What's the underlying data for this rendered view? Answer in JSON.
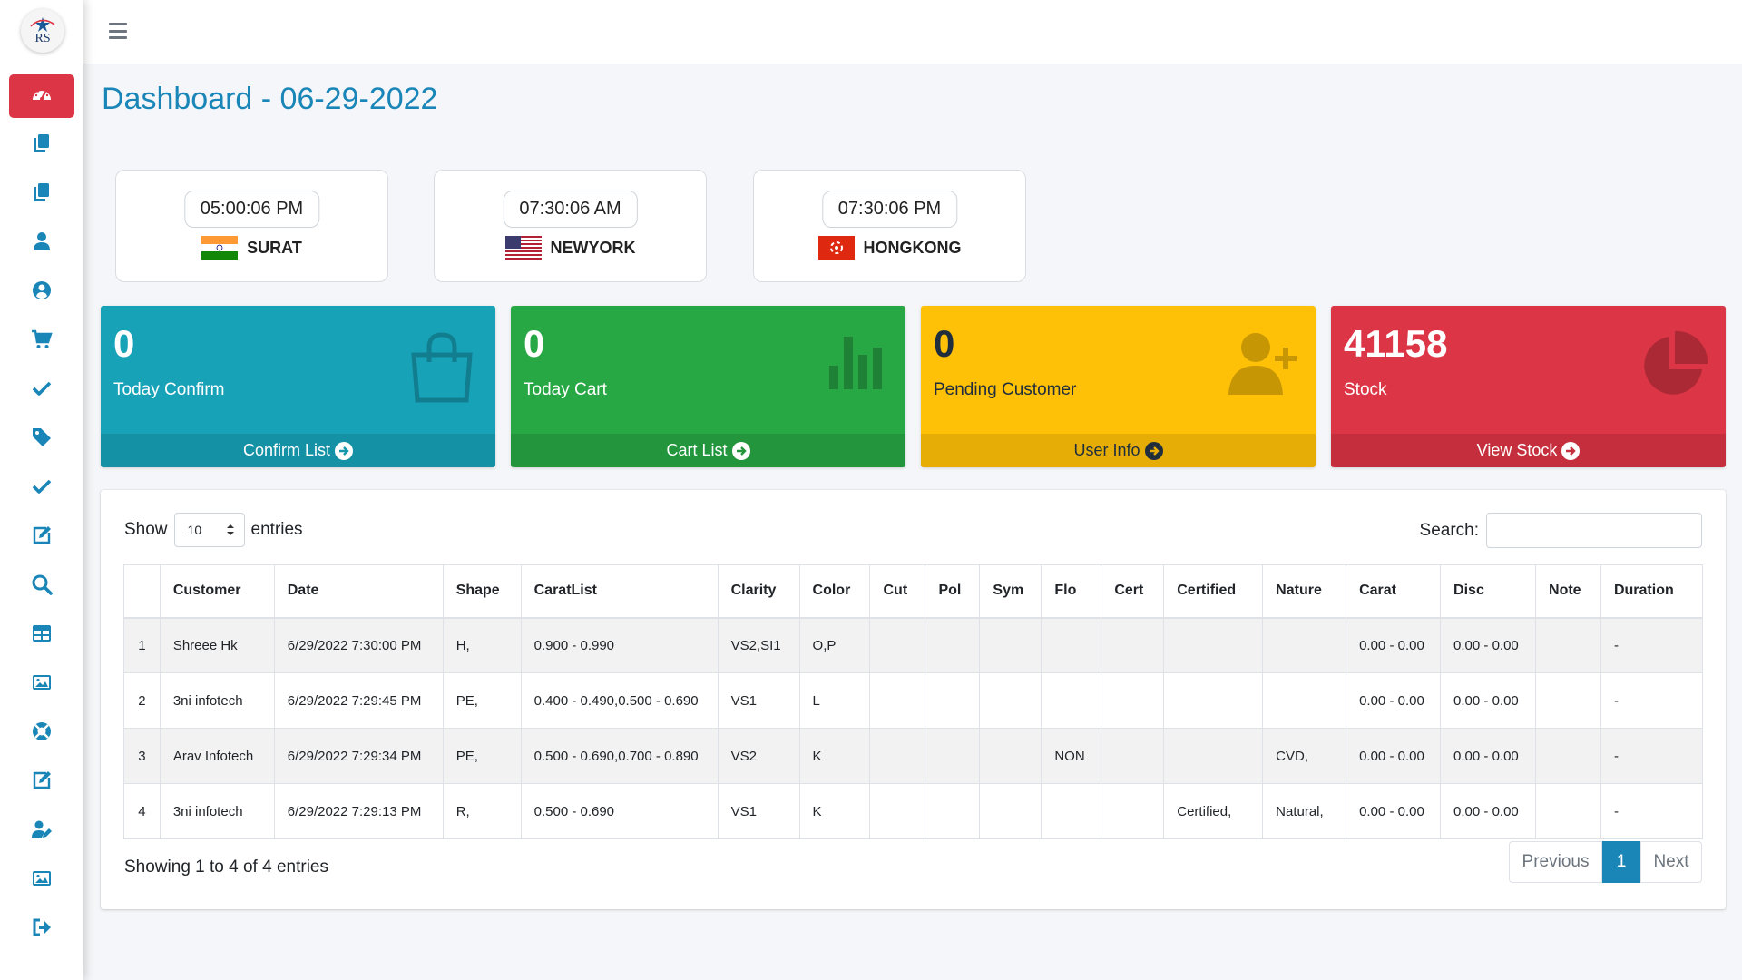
{
  "sidebar": {
    "logo_text": "RS",
    "items": [
      {
        "icon": "dashboard-icon",
        "active": true
      },
      {
        "icon": "copy-icon"
      },
      {
        "icon": "copy-icon"
      },
      {
        "icon": "user-icon"
      },
      {
        "icon": "user-circle-icon"
      },
      {
        "icon": "cart-icon"
      },
      {
        "icon": "check-icon"
      },
      {
        "icon": "tag-icon"
      },
      {
        "icon": "check-icon"
      },
      {
        "icon": "edit-icon"
      },
      {
        "icon": "search-icon"
      },
      {
        "icon": "table-icon"
      },
      {
        "icon": "image-icon"
      },
      {
        "icon": "support-icon"
      },
      {
        "icon": "edit-icon"
      },
      {
        "icon": "user-edit-icon"
      },
      {
        "icon": "image-icon"
      },
      {
        "icon": "logout-icon"
      }
    ]
  },
  "page": {
    "title": "Dashboard - 06-29-2022"
  },
  "clocks": [
    {
      "time": "05:00:06 PM",
      "city": "SURAT",
      "flag": "india"
    },
    {
      "time": "07:30:06 AM",
      "city": "NEWYORK",
      "flag": "usa"
    },
    {
      "time": "07:30:06 PM",
      "city": "HONGKONG",
      "flag": "hongkong"
    }
  ],
  "stats": [
    {
      "value": "0",
      "label": "Today Confirm",
      "link": "Confirm List",
      "color": "#17a2b8",
      "icon": "shopping-bag-icon"
    },
    {
      "value": "0",
      "label": "Today Cart",
      "link": "Cart List",
      "color": "#28a745",
      "icon": "bar-chart-icon"
    },
    {
      "value": "0",
      "label": "Pending Customer",
      "link": "User Info",
      "color": "#ffc107",
      "icon": "user-plus-icon"
    },
    {
      "value": "41158",
      "label": "Stock",
      "link": "View Stock",
      "color": "#dc3545",
      "icon": "pie-chart-icon"
    }
  ],
  "table_controls": {
    "show_label": "Show",
    "page_size": "10",
    "entries_label": "entries",
    "search_label": "Search:",
    "search_value": ""
  },
  "table": {
    "columns": [
      "",
      "Customer",
      "Date",
      "Shape",
      "CaratList",
      "Clarity",
      "Color",
      "Cut",
      "Pol",
      "Sym",
      "Flo",
      "Cert",
      "Certified",
      "Nature",
      "Carat",
      "Disc",
      "Note",
      "Duration"
    ],
    "rows": [
      [
        "1",
        "Shreee Hk",
        "6/29/2022 7:30:00 PM",
        "H,",
        "0.900 - 0.990",
        "VS2,SI1",
        "O,P",
        "",
        "",
        "",
        "",
        "",
        "",
        "",
        "0.00 - 0.00",
        "0.00 - 0.00",
        "",
        "-"
      ],
      [
        "2",
        "3ni infotech",
        "6/29/2022 7:29:45 PM",
        "PE,",
        "0.400 - 0.490,0.500 - 0.690",
        "VS1",
        "L",
        "",
        "",
        "",
        "",
        "",
        "",
        "",
        "0.00 - 0.00",
        "0.00 - 0.00",
        "",
        "-"
      ],
      [
        "3",
        "Arav Infotech",
        "6/29/2022 7:29:34 PM",
        "PE,",
        "0.500 - 0.690,0.700 - 0.890",
        "VS2",
        "K",
        "",
        "",
        "",
        "NON",
        "",
        "",
        "CVD,",
        "0.00 - 0.00",
        "0.00 - 0.00",
        "",
        "-"
      ],
      [
        "4",
        "3ni infotech",
        "6/29/2022 7:29:13 PM",
        "R,",
        "0.500 - 0.690",
        "VS1",
        "K",
        "",
        "",
        "",
        "",
        "",
        "Certified,",
        "Natural,",
        "0.00 - 0.00",
        "0.00 - 0.00",
        "",
        "-"
      ]
    ]
  },
  "footer": {
    "showing": "Showing 1 to 4 of 4 entries",
    "prev": "Previous",
    "current": "1",
    "next": "Next"
  },
  "colors": {
    "accent": "#1a86b8",
    "active_nav": "#dc3545",
    "nav_icon": "#1a86b8"
  }
}
